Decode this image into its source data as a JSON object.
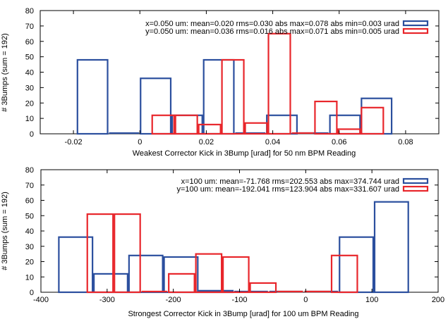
{
  "colors": {
    "x_series": "#2b4f9e",
    "y_series": "#e8262b",
    "axis": "#000000"
  },
  "chart_data": [
    {
      "type": "bar",
      "style": "histogram-outline",
      "xlabel": "Weakest Corrector Kick in 3Bump [urad] for 50 nm BPM Reading",
      "ylabel": "# 3Bumps (sum = 192)",
      "xlim": [
        -0.03,
        0.09
      ],
      "ylim": [
        0,
        80
      ],
      "xticks": [
        -0.02,
        0,
        0.02,
        0.04,
        0.06,
        0.08
      ],
      "xtick_labels": [
        "-0.02",
        "0",
        "0.02",
        "0.04",
        "0.06",
        "0.08"
      ],
      "yticks": [
        0,
        10,
        20,
        30,
        40,
        50,
        60,
        70,
        80
      ],
      "legend_placement": "top-right",
      "series": [
        {
          "name": "x=0.050 um: mean=0.020 rms=0.030 abs max=0.078 abs min=0.003 urad",
          "color_key": "x_series",
          "bins": [
            {
              "x0": -0.019,
              "x1": -0.0095,
              "y": 48
            },
            {
              "x0": -0.0095,
              "x1": 0.0,
              "y": 0
            },
            {
              "x0": 0.0,
              "x1": 0.0095,
              "y": 36
            },
            {
              "x0": 0.0095,
              "x1": 0.019,
              "y": 12
            },
            {
              "x0": 0.019,
              "x1": 0.0285,
              "y": 48
            },
            {
              "x0": 0.0285,
              "x1": 0.038,
              "y": 0
            },
            {
              "x0": 0.038,
              "x1": 0.0475,
              "y": 12
            },
            {
              "x0": 0.0475,
              "x1": 0.057,
              "y": 0
            },
            {
              "x0": 0.057,
              "x1": 0.0665,
              "y": 12
            },
            {
              "x0": 0.0665,
              "x1": 0.076,
              "y": 23
            }
          ]
        },
        {
          "name": "y=0.050 um: mean=0.036 rms=0.016 abs max=0.071 abs min=0.005 urad",
          "color_key": "y_series",
          "bins": [
            {
              "x0": 0.0035,
              "x1": 0.0105,
              "y": 12
            },
            {
              "x0": 0.0105,
              "x1": 0.0175,
              "y": 12
            },
            {
              "x0": 0.0175,
              "x1": 0.0245,
              "y": 6
            },
            {
              "x0": 0.0245,
              "x1": 0.0315,
              "y": 48
            },
            {
              "x0": 0.0315,
              "x1": 0.0385,
              "y": 7
            },
            {
              "x0": 0.0385,
              "x1": 0.0455,
              "y": 65
            },
            {
              "x0": 0.0455,
              "x1": 0.0525,
              "y": 0
            },
            {
              "x0": 0.0525,
              "x1": 0.0595,
              "y": 21
            },
            {
              "x0": 0.0595,
              "x1": 0.0665,
              "y": 3
            },
            {
              "x0": 0.0665,
              "x1": 0.0735,
              "y": 17
            }
          ]
        }
      ]
    },
    {
      "type": "bar",
      "style": "histogram-outline",
      "xlabel": "Strongest Corrector Kick in 3Bump [urad] for 100 um BPM Reading",
      "ylabel": "# 3Bumps (sum = 192)",
      "xlim": [
        -400,
        200
      ],
      "ylim": [
        0,
        80
      ],
      "xticks": [
        -400,
        -300,
        -200,
        -100,
        0,
        100,
        200
      ],
      "xtick_labels": [
        "-400",
        "-300",
        "-200",
        "-100",
        "0",
        "100",
        "200"
      ],
      "yticks": [
        0,
        10,
        20,
        30,
        40,
        50,
        60,
        70,
        80
      ],
      "legend_placement": "top-right",
      "series": [
        {
          "name": "x=100 um: mean=-71.768 rms=202.553 abs max=374.744 urad",
          "color_key": "x_series",
          "bins": [
            {
              "x0": -374,
              "x1": -321,
              "y": 36
            },
            {
              "x0": -321,
              "x1": -268,
              "y": 12
            },
            {
              "x0": -268,
              "x1": -215,
              "y": 24
            },
            {
              "x0": -215,
              "x1": -162,
              "y": 23
            },
            {
              "x0": -162,
              "x1": -109,
              "y": 1
            },
            {
              "x0": -109,
              "x1": -56,
              "y": 0
            },
            {
              "x0": -56,
              "x1": -3,
              "y": 0
            },
            {
              "x0": -3,
              "x1": 50,
              "y": 0
            },
            {
              "x0": 50,
              "x1": 103,
              "y": 36
            },
            {
              "x0": 103,
              "x1": 156,
              "y": 59
            }
          ]
        },
        {
          "name": "y=100 um: mean=-192.041 rms=123.904 abs max=331.607 urad",
          "color_key": "y_series",
          "bins": [
            {
              "x0": -331,
              "x1": -290,
              "y": 51
            },
            {
              "x0": -290,
              "x1": -249,
              "y": 51
            },
            {
              "x0": -249,
              "x1": -208,
              "y": 0
            },
            {
              "x0": -208,
              "x1": -167,
              "y": 12
            },
            {
              "x0": -167,
              "x1": -126,
              "y": 25
            },
            {
              "x0": -126,
              "x1": -85,
              "y": 23
            },
            {
              "x0": -85,
              "x1": -44,
              "y": 6
            },
            {
              "x0": -44,
              "x1": -3,
              "y": 0
            },
            {
              "x0": -3,
              "x1": 38,
              "y": 0
            },
            {
              "x0": 38,
              "x1": 79,
              "y": 24
            }
          ]
        }
      ]
    }
  ]
}
